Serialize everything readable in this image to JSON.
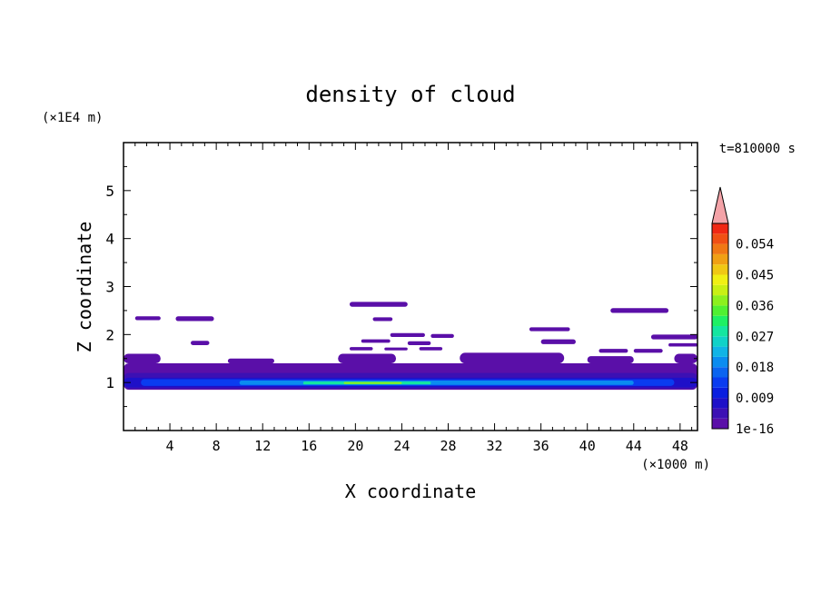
{
  "chart_data": {
    "type": "heatmap",
    "title": "density of cloud",
    "xlabel": "X coordinate",
    "ylabel": "Z coordinate",
    "x_unit": "(×1000 m)",
    "y_unit": "(×1E4 m)",
    "time_label": "t=810000 s",
    "xlim": [
      0,
      49.5
    ],
    "ylim": [
      0,
      6
    ],
    "x_ticks": [
      4,
      8,
      12,
      16,
      20,
      24,
      28,
      32,
      36,
      40,
      44,
      48
    ],
    "y_ticks": [
      1,
      2,
      3,
      4,
      5
    ],
    "colorbar": {
      "labels": [
        "1e-16",
        "0.009",
        "0.018",
        "0.027",
        "0.036",
        "0.045",
        "0.054"
      ],
      "label_values": [
        0,
        0.009,
        0.018,
        0.027,
        0.036,
        0.045,
        0.054
      ],
      "levels": [
        0,
        0.003,
        0.006,
        0.009,
        0.012,
        0.015,
        0.018,
        0.021,
        0.024,
        0.027,
        0.03,
        0.033,
        0.036,
        0.039,
        0.042,
        0.045,
        0.048,
        0.051,
        0.054,
        0.057,
        0.06
      ],
      "colors": [
        "#5a0fa8",
        "#3c10b4",
        "#1e10c8",
        "#0a1ee0",
        "#0a3cf0",
        "#0a64f0",
        "#0a8cf0",
        "#10b4e6",
        "#10d2c8",
        "#14e6a0",
        "#1ef064",
        "#50f032",
        "#8cf01e",
        "#c8f014",
        "#f0f014",
        "#f0c814",
        "#f0a014",
        "#f07814",
        "#f05014",
        "#f02814"
      ],
      "extend_color": "#f4a3a8"
    },
    "regions": [
      {
        "level": 0.0,
        "x": [
          0,
          49.5
        ],
        "z": [
          0.85,
          1.4
        ]
      },
      {
        "level": 0.003,
        "x": [
          0,
          49.5
        ],
        "z": [
          0.87,
          1.2
        ]
      },
      {
        "level": 0.006,
        "x": [
          0,
          49.5
        ],
        "z": [
          0.9,
          1.1
        ]
      },
      {
        "level": 0.012,
        "x": [
          1.5,
          47.5
        ],
        "z": [
          0.93,
          1.07
        ]
      },
      {
        "level": 0.018,
        "x": [
          10,
          44
        ],
        "z": [
          0.95,
          1.04
        ]
      },
      {
        "level": 0.027,
        "x": [
          15.5,
          26.5
        ],
        "z": [
          0.96,
          1.02
        ]
      },
      {
        "level": 0.036,
        "x": [
          19,
          24
        ],
        "z": [
          0.97,
          1.01
        ]
      },
      {
        "level": 0.0,
        "x": [
          0,
          3.2
        ],
        "z": [
          1.4,
          1.6
        ]
      },
      {
        "level": 0.0,
        "x": [
          9,
          13
        ],
        "z": [
          1.4,
          1.5
        ]
      },
      {
        "level": 0.0,
        "x": [
          18.5,
          23.5
        ],
        "z": [
          1.4,
          1.6
        ]
      },
      {
        "level": 0.0,
        "x": [
          29,
          38
        ],
        "z": [
          1.4,
          1.62
        ]
      },
      {
        "level": 0.0,
        "x": [
          40,
          44
        ],
        "z": [
          1.4,
          1.55
        ]
      },
      {
        "level": 0.0,
        "x": [
          47.5,
          49.5
        ],
        "z": [
          1.4,
          1.6
        ]
      },
      {
        "level": 0.0,
        "x": [
          1,
          3.2
        ],
        "z": [
          2.3,
          2.38
        ]
      },
      {
        "level": 0.0,
        "x": [
          4.5,
          7.8
        ],
        "z": [
          2.28,
          2.38
        ]
      },
      {
        "level": 0.0,
        "x": [
          5.8,
          7.4
        ],
        "z": [
          1.78,
          1.87
        ]
      },
      {
        "level": 0.0,
        "x": [
          19.5,
          24.5
        ],
        "z": [
          2.58,
          2.68
        ]
      },
      {
        "level": 0.0,
        "x": [
          21.5,
          23.2
        ],
        "z": [
          2.28,
          2.36
        ]
      },
      {
        "level": 0.0,
        "x": [
          23,
          26
        ],
        "z": [
          1.95,
          2.03
        ]
      },
      {
        "level": 0.0,
        "x": [
          26.5,
          28.5
        ],
        "z": [
          1.93,
          2.01
        ]
      },
      {
        "level": 0.0,
        "x": [
          20.5,
          23
        ],
        "z": [
          1.83,
          1.9
        ]
      },
      {
        "level": 0.0,
        "x": [
          24.5,
          26.5
        ],
        "z": [
          1.78,
          1.86
        ]
      },
      {
        "level": 0.0,
        "x": [
          19.5,
          21.5
        ],
        "z": [
          1.67,
          1.74
        ]
      },
      {
        "level": 0.0,
        "x": [
          22.5,
          24.5
        ],
        "z": [
          1.67,
          1.73
        ]
      },
      {
        "level": 0.0,
        "x": [
          25.5,
          27.5
        ],
        "z": [
          1.67,
          1.74
        ]
      },
      {
        "level": 0.0,
        "x": [
          35,
          38.5
        ],
        "z": [
          2.07,
          2.15
        ]
      },
      {
        "level": 0.0,
        "x": [
          42,
          47
        ],
        "z": [
          2.45,
          2.55
        ]
      },
      {
        "level": 0.0,
        "x": [
          36,
          39
        ],
        "z": [
          1.8,
          1.9
        ]
      },
      {
        "level": 0.0,
        "x": [
          45.5,
          49.5
        ],
        "z": [
          1.9,
          2.0
        ]
      },
      {
        "level": 0.0,
        "x": [
          41,
          43.5
        ],
        "z": [
          1.62,
          1.7
        ]
      },
      {
        "level": 0.0,
        "x": [
          44,
          46.5
        ],
        "z": [
          1.62,
          1.7
        ]
      },
      {
        "level": 0.0,
        "x": [
          47,
          49.5
        ],
        "z": [
          1.75,
          1.82
        ]
      }
    ]
  }
}
